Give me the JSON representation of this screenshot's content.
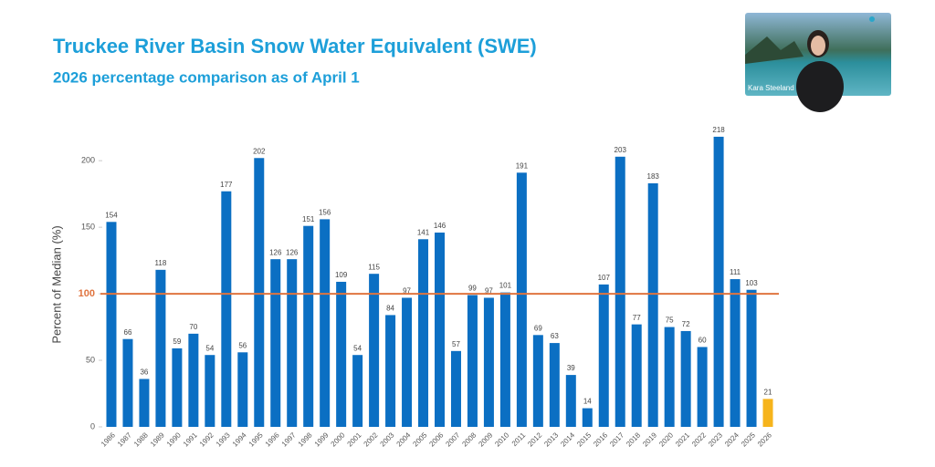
{
  "chart_data": {
    "type": "bar",
    "title": "Truckee River Basin Snow Water Equivalent (SWE)",
    "subtitle": "2026 percentage comparison as of April 1",
    "y_label": "Percent of Median (%)",
    "categories": [
      "1986",
      "1987",
      "1988",
      "1989",
      "1990",
      "1991",
      "1992",
      "1993",
      "1994",
      "1995",
      "1996",
      "1997",
      "1998",
      "1999",
      "2000",
      "2001",
      "2002",
      "2003",
      "2004",
      "2005",
      "2006",
      "2007",
      "2008",
      "2009",
      "2010",
      "2011",
      "2012",
      "2013",
      "2014",
      "2015",
      "2016",
      "2017",
      "2018",
      "2019",
      "2020",
      "2021",
      "2022",
      "2023",
      "2024",
      "2025",
      "2026"
    ],
    "values": [
      154,
      66,
      36,
      118,
      59,
      70,
      54,
      177,
      56,
      202,
      126,
      126,
      151,
      156,
      109,
      54,
      115,
      84,
      97,
      141,
      146,
      57,
      99,
      97,
      101,
      191,
      69,
      63,
      39,
      14,
      107,
      203,
      77,
      183,
      75,
      72,
      60,
      218,
      111,
      103,
      21
    ],
    "colors": [
      "#0b6fc3",
      "#0b6fc3",
      "#0b6fc3",
      "#0b6fc3",
      "#0b6fc3",
      "#0b6fc3",
      "#0b6fc3",
      "#0b6fc3",
      "#0b6fc3",
      "#0b6fc3",
      "#0b6fc3",
      "#0b6fc3",
      "#0b6fc3",
      "#0b6fc3",
      "#0b6fc3",
      "#0b6fc3",
      "#0b6fc3",
      "#0b6fc3",
      "#0b6fc3",
      "#0b6fc3",
      "#0b6fc3",
      "#0b6fc3",
      "#0b6fc3",
      "#0b6fc3",
      "#0b6fc3",
      "#0b6fc3",
      "#0b6fc3",
      "#0b6fc3",
      "#0b6fc3",
      "#0b6fc3",
      "#0b6fc3",
      "#0b6fc3",
      "#0b6fc3",
      "#0b6fc3",
      "#0b6fc3",
      "#0b6fc3",
      "#0b6fc3",
      "#0b6fc3",
      "#0b6fc3",
      "#0b6fc3",
      "#f6b41c"
    ],
    "ylim": [
      0,
      220
    ],
    "yticks": [
      0,
      50,
      100,
      150,
      200
    ],
    "reference_line": {
      "value": 100,
      "color": "#e0743f"
    }
  },
  "overlay": {
    "name": "Kara Steeland"
  }
}
